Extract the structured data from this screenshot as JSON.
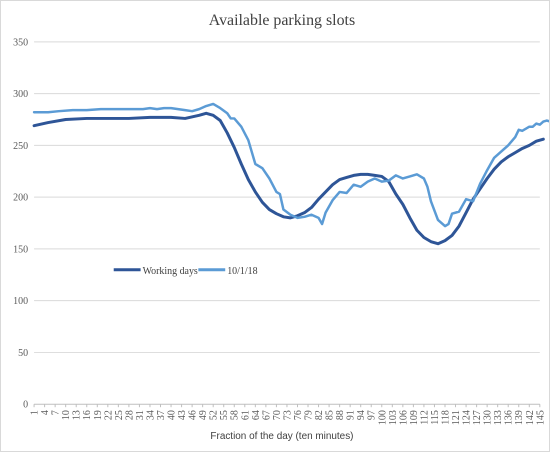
{
  "chart_data": {
    "type": "line",
    "title": "Available parking slots",
    "xlabel": "Fraction of the day (ten minutes)",
    "ylabel": "",
    "ylim": [
      0,
      350
    ],
    "yticks": [
      0,
      50,
      100,
      150,
      200,
      250,
      300,
      350
    ],
    "xlim": [
      1,
      145
    ],
    "x_tick_labels": [
      "1",
      "4",
      "7",
      "10",
      "13",
      "16",
      "19",
      "22",
      "25",
      "28",
      "31",
      "34",
      "37",
      "40",
      "43",
      "46",
      "49",
      "52",
      "55",
      "58",
      "61",
      "64",
      "67",
      "70",
      "73",
      "76",
      "79",
      "82",
      "85",
      "88",
      "91",
      "94",
      "97",
      "100",
      "103",
      "106",
      "109",
      "112",
      "115",
      "118",
      "121",
      "124",
      "127",
      "130",
      "133",
      "136",
      "139",
      "142",
      "145"
    ],
    "grid": "horizontal",
    "legend_position": "middle-left",
    "series": [
      {
        "name": "Working days",
        "color": "#2E5597",
        "points": [
          [
            1,
            269
          ],
          [
            5,
            272
          ],
          [
            10,
            275
          ],
          [
            16,
            276
          ],
          [
            22,
            276
          ],
          [
            28,
            276
          ],
          [
            34,
            277
          ],
          [
            40,
            277
          ],
          [
            44,
            276
          ],
          [
            48,
            279
          ],
          [
            50,
            281
          ],
          [
            52,
            279
          ],
          [
            54,
            274
          ],
          [
            56,
            262
          ],
          [
            58,
            248
          ],
          [
            60,
            232
          ],
          [
            62,
            217
          ],
          [
            64,
            205
          ],
          [
            66,
            195
          ],
          [
            68,
            188
          ],
          [
            70,
            184
          ],
          [
            72,
            181
          ],
          [
            74,
            180
          ],
          [
            76,
            182
          ],
          [
            78,
            185
          ],
          [
            80,
            190
          ],
          [
            82,
            198
          ],
          [
            84,
            205
          ],
          [
            86,
            212
          ],
          [
            88,
            217
          ],
          [
            90,
            219
          ],
          [
            92,
            221
          ],
          [
            94,
            222
          ],
          [
            96,
            222
          ],
          [
            98,
            221
          ],
          [
            100,
            220
          ],
          [
            102,
            215
          ],
          [
            104,
            203
          ],
          [
            106,
            193
          ],
          [
            108,
            180
          ],
          [
            110,
            168
          ],
          [
            112,
            161
          ],
          [
            114,
            157
          ],
          [
            116,
            155
          ],
          [
            118,
            158
          ],
          [
            120,
            163
          ],
          [
            122,
            172
          ],
          [
            124,
            185
          ],
          [
            126,
            198
          ],
          [
            128,
            208
          ],
          [
            130,
            218
          ],
          [
            132,
            227
          ],
          [
            134,
            234
          ],
          [
            136,
            239
          ],
          [
            138,
            243
          ],
          [
            140,
            247
          ],
          [
            142,
            250
          ],
          [
            144,
            254
          ],
          [
            146,
            256
          ]
        ]
      },
      {
        "name": "10/1/18",
        "color": "#5B9BD5",
        "points": [
          [
            1,
            282
          ],
          [
            5,
            282
          ],
          [
            8,
            283
          ],
          [
            12,
            284
          ],
          [
            16,
            284
          ],
          [
            20,
            285
          ],
          [
            24,
            285
          ],
          [
            28,
            285
          ],
          [
            32,
            285
          ],
          [
            34,
            286
          ],
          [
            36,
            285
          ],
          [
            38,
            286
          ],
          [
            40,
            286
          ],
          [
            42,
            285
          ],
          [
            44,
            284
          ],
          [
            46,
            283
          ],
          [
            48,
            285
          ],
          [
            50,
            288
          ],
          [
            52,
            290
          ],
          [
            54,
            286
          ],
          [
            56,
            281
          ],
          [
            57,
            276
          ],
          [
            58,
            276
          ],
          [
            60,
            268
          ],
          [
            62,
            255
          ],
          [
            64,
            232
          ],
          [
            66,
            228
          ],
          [
            68,
            218
          ],
          [
            70,
            205
          ],
          [
            71,
            203
          ],
          [
            72,
            188
          ],
          [
            74,
            183
          ],
          [
            76,
            180
          ],
          [
            78,
            181
          ],
          [
            80,
            183
          ],
          [
            82,
            180
          ],
          [
            83,
            174
          ],
          [
            84,
            185
          ],
          [
            86,
            197
          ],
          [
            88,
            205
          ],
          [
            90,
            204
          ],
          [
            92,
            212
          ],
          [
            94,
            210
          ],
          [
            96,
            215
          ],
          [
            98,
            218
          ],
          [
            100,
            215
          ],
          [
            102,
            216
          ],
          [
            104,
            221
          ],
          [
            106,
            218
          ],
          [
            108,
            220
          ],
          [
            110,
            222
          ],
          [
            112,
            218
          ],
          [
            113,
            210
          ],
          [
            114,
            196
          ],
          [
            116,
            178
          ],
          [
            118,
            172
          ],
          [
            119,
            174
          ],
          [
            120,
            184
          ],
          [
            122,
            186
          ],
          [
            124,
            198
          ],
          [
            125,
            197
          ],
          [
            126,
            196
          ],
          [
            128,
            213
          ],
          [
            130,
            226
          ],
          [
            132,
            238
          ],
          [
            134,
            244
          ],
          [
            136,
            250
          ],
          [
            138,
            258
          ],
          [
            139,
            265
          ],
          [
            140,
            264
          ],
          [
            142,
            268
          ],
          [
            143,
            268
          ],
          [
            144,
            271
          ],
          [
            145,
            270
          ],
          [
            146,
            273
          ],
          [
            147,
            274
          ],
          [
            148,
            273
          ]
        ]
      }
    ]
  }
}
